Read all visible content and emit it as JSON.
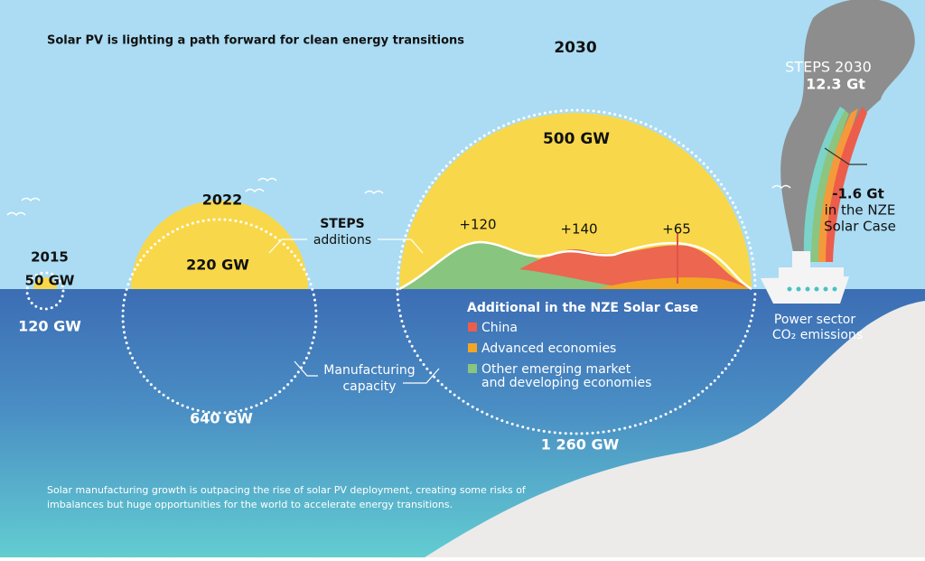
{
  "title": "Solar PV is lighting a path forward for clean energy transitions",
  "years": [
    {
      "year": "2015",
      "deployment": "50 GW",
      "manufacturing": "120 GW"
    },
    {
      "year": "2022",
      "deployment": "220 GW",
      "manufacturing": "640 GW"
    },
    {
      "year": "2030",
      "deployment": "500 GW",
      "manufacturing": "1 260 GW"
    }
  ],
  "steps_label": [
    "STEPS",
    "additions"
  ],
  "manufacturing_label": [
    "Manufacturing",
    "capacity"
  ],
  "nze_additions": [
    "+120",
    "+140",
    "+65"
  ],
  "legend": {
    "title": "Additional in the NZE Solar Case",
    "items": [
      [
        "China"
      ],
      [
        "Advanced economies"
      ],
      [
        "Other emerging market",
        "and developing economies"
      ]
    ]
  },
  "emissions": {
    "scenario": "STEPS 2030",
    "value": "12.3 Gt",
    "reduction": "-1.6 Gt",
    "reduction_note": [
      "in the NZE",
      "Solar Case"
    ],
    "label": [
      "Power sector",
      "CO₂ emissions"
    ]
  },
  "footnote": [
    "Solar manufacturing growth is outpacing the rise of solar PV deployment, creating some risks of",
    "imbalances but huge opportunities for the world to accelerate energy transitions."
  ]
}
